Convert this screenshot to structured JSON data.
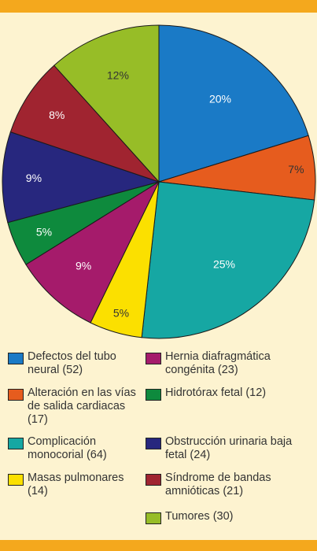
{
  "chart_data": {
    "type": "pie",
    "slices": [
      {
        "label": "Defectos del tubo neural (52)",
        "pct_label": "20%",
        "value": 52,
        "color": "#1a7ac6"
      },
      {
        "label": "Alteración en las vías de salida cardiacas (17)",
        "pct_label": "7%",
        "value": 17,
        "color": "#e65c1e"
      },
      {
        "label": "Complicación monocorial (64)",
        "pct_label": "25%",
        "value": 64,
        "color": "#16a7a3"
      },
      {
        "label": "Masas pulmonares (14)",
        "pct_label": "5%",
        "value": 14,
        "color": "#fbe000"
      },
      {
        "label": "Hernia diafragmática congénita (23)",
        "pct_label": "9%",
        "value": 23,
        "color": "#a51b6b"
      },
      {
        "label": "Hidrotórax fetal (12)",
        "pct_label": "5%",
        "value": 12,
        "color": "#0e8a3d"
      },
      {
        "label": "Obstrucción urinaria baja fetal (24)",
        "pct_label": "9%",
        "value": 24,
        "color": "#27277e"
      },
      {
        "label": "Síndrome de bandas amnióticas (21)",
        "pct_label": "8%",
        "value": 21,
        "color": "#a02430"
      },
      {
        "label": "Tumores (30)",
        "pct_label": "12%",
        "value": 30,
        "color": "#97bd27"
      }
    ],
    "legend_placement": "bottom"
  },
  "legend": [
    {
      "lines": [
        "Defectos del tubo",
        "neural (52)"
      ]
    },
    {
      "lines": [
        "Alteración en las vías",
        "de salida cardiacas",
        "(17)"
      ]
    },
    {
      "lines": [
        "Complicación",
        "monocorial (64)"
      ]
    },
    {
      "lines": [
        "Masas pulmonares",
        "(14)"
      ]
    },
    {
      "lines": [
        "Hernia diafragmática",
        "congénita (23)"
      ]
    },
    {
      "lines": [
        "Hidrotórax fetal (12)"
      ]
    },
    {
      "lines": [
        "Obstrucción urinaria baja",
        "fetal (24)"
      ]
    },
    {
      "lines": [
        "Síndrome de bandas",
        "amnióticas (21)"
      ]
    },
    {
      "lines": [
        "Tumores (30)"
      ]
    }
  ]
}
